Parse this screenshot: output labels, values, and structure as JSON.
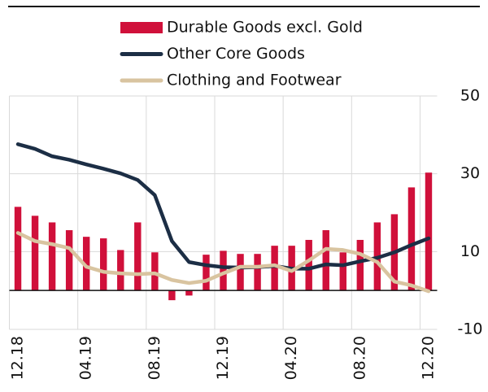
{
  "chart_data": {
    "type": "bar_line",
    "categories": [
      "12.18",
      null,
      null,
      null,
      "04.19",
      null,
      null,
      null,
      "08.19",
      null,
      null,
      null,
      "12.19",
      null,
      null,
      null,
      "04.20",
      null,
      null,
      null,
      "08.20",
      null,
      null,
      null,
      "12.20"
    ],
    "series": [
      {
        "name": "Durable Goods excl. Gold",
        "type": "bar",
        "color": "#d0103a",
        "values": [
          21.5,
          19.2,
          17.5,
          15.5,
          13.8,
          13.4,
          10.4,
          17.5,
          9.8,
          -2.5,
          -1.3,
          9.2,
          10.2,
          9.4,
          9.4,
          11.5,
          11.5,
          13,
          15.5,
          9.8,
          13,
          17.5,
          19.6,
          26.5,
          30.3
        ]
      },
      {
        "name": "Other Core Goods",
        "type": "line",
        "color": "#1c2e45",
        "values": [
          37.6,
          36.4,
          34.5,
          33.6,
          32.4,
          31.3,
          30.1,
          28.4,
          24.5,
          12.7,
          7.3,
          6.5,
          6,
          5.9,
          6,
          6.3,
          5.6,
          5.6,
          6.7,
          6.5,
          7.5,
          8.4,
          9.8,
          11.7,
          13.4
        ]
      },
      {
        "name": "Clothing and Footwear",
        "type": "line",
        "color": "#d9c4a0",
        "values": [
          14.8,
          12.7,
          11.9,
          10.9,
          6.1,
          4.8,
          4.4,
          4.2,
          4.4,
          2.7,
          1.9,
          2.5,
          4.4,
          6.1,
          6.1,
          6.5,
          5,
          7.7,
          10.7,
          10.4,
          9.4,
          7.3,
          2.3,
          1.3,
          -0.2
        ]
      }
    ],
    "ylim": [
      -10,
      50
    ],
    "yticks": [
      -10,
      10,
      30,
      50
    ],
    "grid": true,
    "y_axis_side": "right",
    "legend": "top"
  }
}
